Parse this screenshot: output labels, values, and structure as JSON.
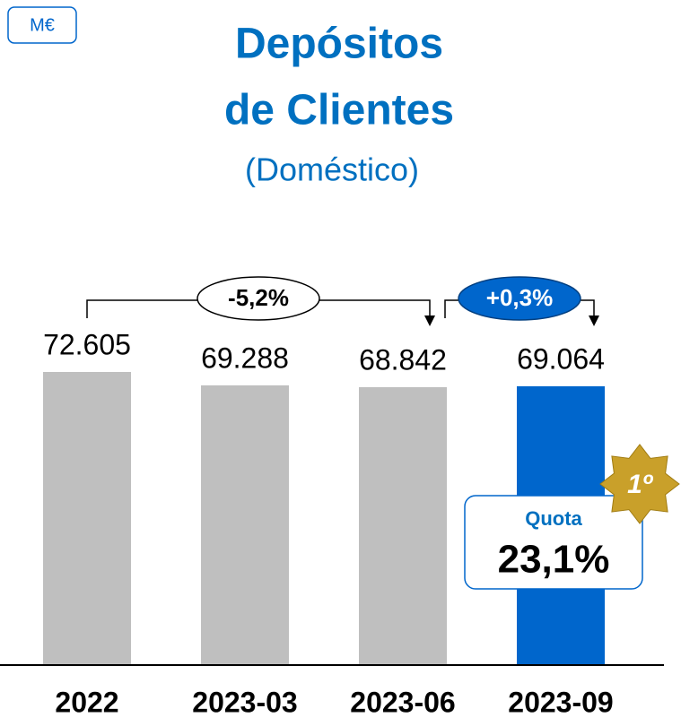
{
  "chart_data": {
    "type": "bar",
    "unit": "M€",
    "title": [
      "Depósitos",
      "de Clientes"
    ],
    "subtitle": "(Doméstico)",
    "categories": [
      "2022",
      "2023-03",
      "2023-06",
      "2023-09"
    ],
    "values": [
      72605,
      69288,
      68842,
      69064
    ],
    "value_labels": [
      "72.605",
      "69.288",
      "68.842",
      "69.064"
    ],
    "colors": [
      "#bfbfbf",
      "#bfbfbf",
      "#bfbfbf",
      "#0066cc"
    ],
    "annotations": [
      {
        "text": "-5,2%",
        "from": 0,
        "to": 2,
        "style": "outline"
      },
      {
        "text": "+0,3%",
        "from": 2,
        "to": 3,
        "style": "filled"
      }
    ],
    "callout": {
      "label": "Quota",
      "value": "23,1%",
      "badge": "1º"
    }
  }
}
